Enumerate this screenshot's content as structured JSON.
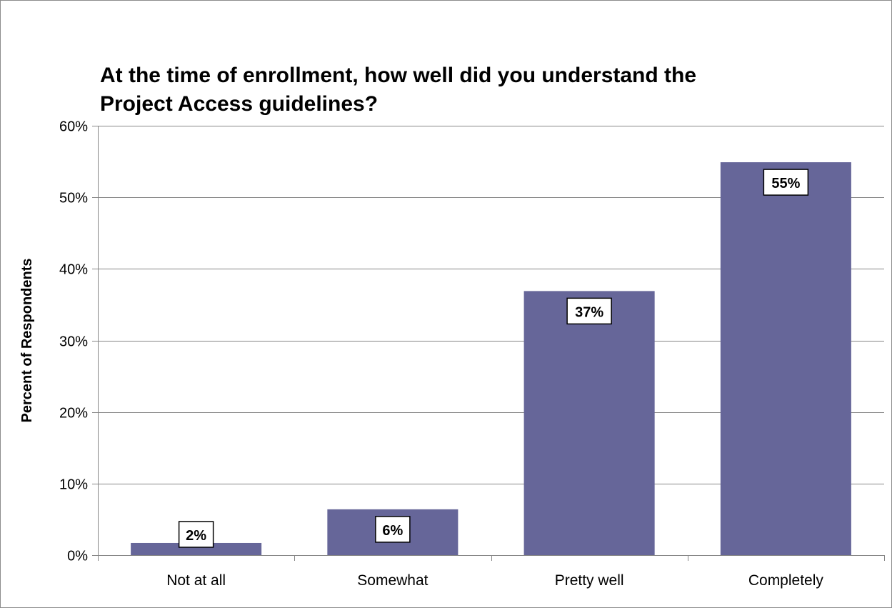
{
  "chart_data": {
    "type": "bar",
    "title_lines": [
      "At the time of enrollment, how well did you understand the",
      "Project Access guidelines?"
    ],
    "xlabel": "",
    "ylabel": "Percent of Respondents",
    "categories": [
      "Not at all",
      "Somewhat",
      "Pretty well",
      "Completely"
    ],
    "values": [
      1.7,
      6.4,
      36.9,
      54.9
    ],
    "data_labels": [
      "2%",
      "6%",
      "37%",
      "55%"
    ],
    "ylim": [
      0,
      60
    ],
    "yticks": [
      0,
      10,
      20,
      30,
      40,
      50,
      60
    ],
    "ytick_labels": [
      "0%",
      "10%",
      "20%",
      "30%",
      "40%",
      "50%",
      "60%"
    ],
    "grid": true,
    "legend": "none",
    "colors": {
      "bar": "#666699",
      "grid": "#868686",
      "axis": "#868686",
      "label_box_border": "#000000",
      "label_box_fill": "#ffffff"
    }
  }
}
